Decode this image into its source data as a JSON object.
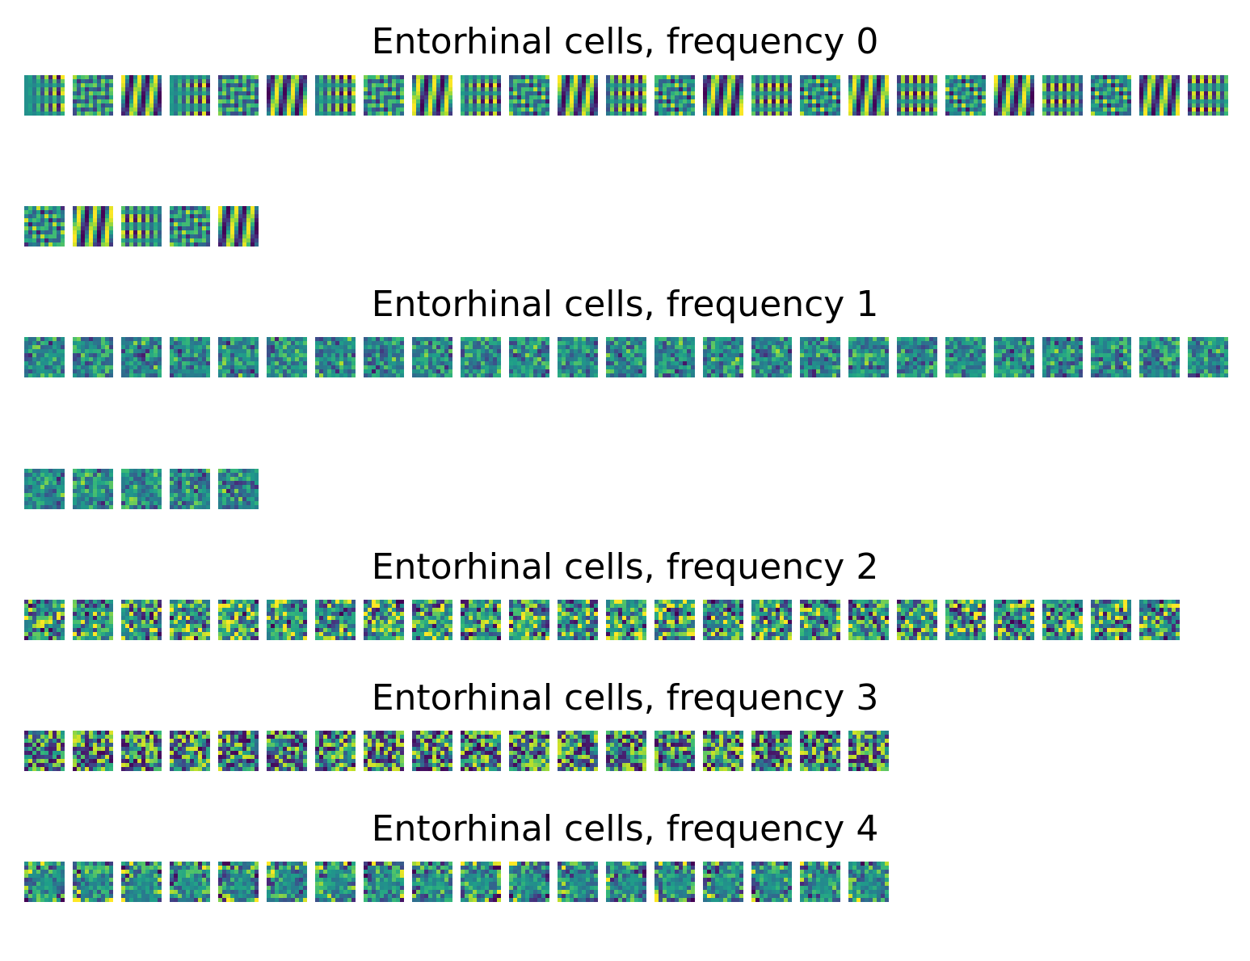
{
  "chart_data": [
    {
      "type": "heatmap",
      "title": "Entorhinal cells, frequency 0",
      "cell_count": 30,
      "pattern": "stripes-fine",
      "colormap": "viridis"
    },
    {
      "type": "heatmap",
      "title": "Entorhinal cells, frequency 1",
      "cell_count": 30,
      "pattern": "blobs",
      "colormap": "viridis"
    },
    {
      "type": "heatmap",
      "title": "Entorhinal cells, frequency 2",
      "cell_count": 24,
      "pattern": "grid-like",
      "colormap": "viridis"
    },
    {
      "type": "heatmap",
      "title": "Entorhinal cells, frequency 3",
      "cell_count": 18,
      "pattern": "stripes-wide",
      "colormap": "viridis"
    },
    {
      "type": "heatmap",
      "title": "Entorhinal cells, frequency 4",
      "cell_count": 18,
      "pattern": "gradients",
      "colormap": "viridis"
    }
  ]
}
